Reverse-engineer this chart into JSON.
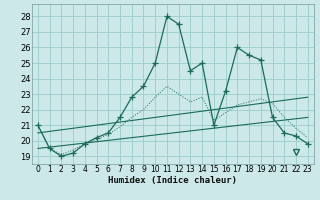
{
  "xlabel": "Humidex (Indice chaleur)",
  "background_color": "#cce8e8",
  "grid_color": "#99cccc",
  "line_color": "#1a6b5a",
  "xlim": [
    -0.5,
    23.5
  ],
  "ylim": [
    18.5,
    28.8
  ],
  "yticks": [
    19,
    20,
    21,
    22,
    23,
    24,
    25,
    26,
    27,
    28
  ],
  "xticks": [
    0,
    1,
    2,
    3,
    4,
    5,
    6,
    7,
    8,
    9,
    10,
    11,
    12,
    13,
    14,
    15,
    16,
    17,
    18,
    19,
    20,
    21,
    22,
    23
  ],
  "main_x": [
    0,
    1,
    2,
    3,
    4,
    5,
    6,
    7,
    8,
    9,
    10,
    11,
    12,
    13,
    14,
    15,
    16,
    17,
    18,
    19,
    20,
    21,
    22,
    23
  ],
  "main_y": [
    21.0,
    19.5,
    19.0,
    19.2,
    19.8,
    20.2,
    20.5,
    21.5,
    22.8,
    23.5,
    25.0,
    28.0,
    27.5,
    24.5,
    25.0,
    21.0,
    23.2,
    26.0,
    25.5,
    25.2,
    21.5,
    20.5,
    20.3,
    19.8
  ],
  "dotted_x": [
    0,
    1,
    2,
    3,
    4,
    5,
    6,
    7,
    8,
    9,
    10,
    11,
    12,
    13,
    14,
    15,
    16,
    17,
    18,
    19,
    20,
    21,
    22,
    23
  ],
  "dotted_y": [
    21.0,
    19.5,
    19.1,
    19.4,
    19.8,
    20.1,
    20.4,
    20.9,
    21.5,
    22.0,
    22.8,
    23.5,
    23.0,
    22.5,
    22.8,
    21.3,
    21.8,
    22.3,
    22.5,
    22.7,
    22.4,
    21.5,
    20.8,
    20.2
  ],
  "trend1_x": [
    0,
    23
  ],
  "trend1_y": [
    20.5,
    22.8
  ],
  "trend2_x": [
    0,
    23
  ],
  "trend2_y": [
    19.5,
    21.5
  ],
  "tri_x": 22,
  "tri_y": 19.3
}
